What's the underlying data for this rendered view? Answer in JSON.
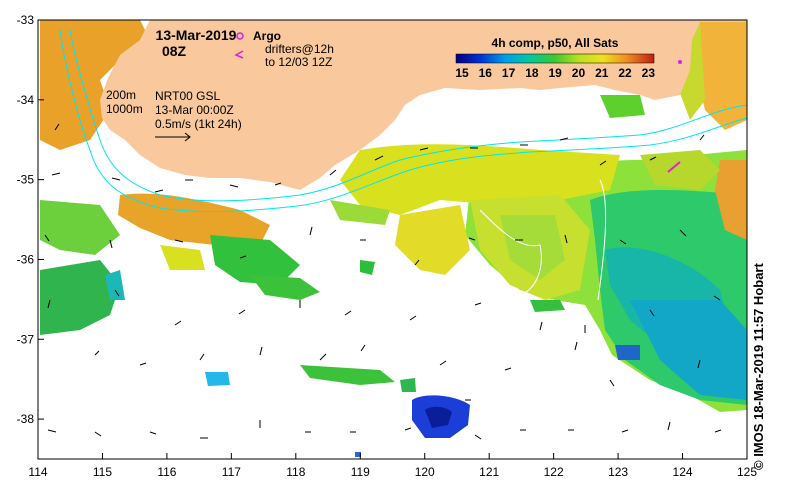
{
  "map": {
    "date_title": "13-Mar-2019",
    "time_title": "08Z",
    "argo_label": "Argo",
    "drifters_label_1": "drifters@12h",
    "drifters_label_2": "to 12/03 12Z",
    "depth_label_1": "200m",
    "depth_label_2": "1000m",
    "product_label": "NRT00 GSL",
    "product_date": "13-Mar 00:00Z",
    "vector_scale": "0.5m/s (1kt 24h)",
    "colorbar_title": "4h comp, p50, All Sats",
    "credit": "© IMOS 18-Mar-2019 11:57 Hobart",
    "lon_range": [
      114,
      125
    ],
    "lat_range": [
      -38.5,
      -33
    ],
    "colorbar_range": [
      15,
      23.5
    ],
    "colors": {
      "land": "#F9C89D",
      "contour": "#00E5EE",
      "argo": "#E020E0",
      "warm": "#E87A10",
      "cool": "#0A3AB8"
    }
  },
  "axes": {
    "x_ticks": [
      "114",
      "115",
      "116",
      "117",
      "118",
      "119",
      "120",
      "121",
      "122",
      "123",
      "124",
      "125"
    ],
    "y_ticks": [
      "-33",
      "-34",
      "-35",
      "-36",
      "-37",
      "-38"
    ]
  },
  "colorbar": {
    "ticks": [
      "15",
      "16",
      "17",
      "18",
      "19",
      "20",
      "21",
      "22",
      "23"
    ]
  }
}
